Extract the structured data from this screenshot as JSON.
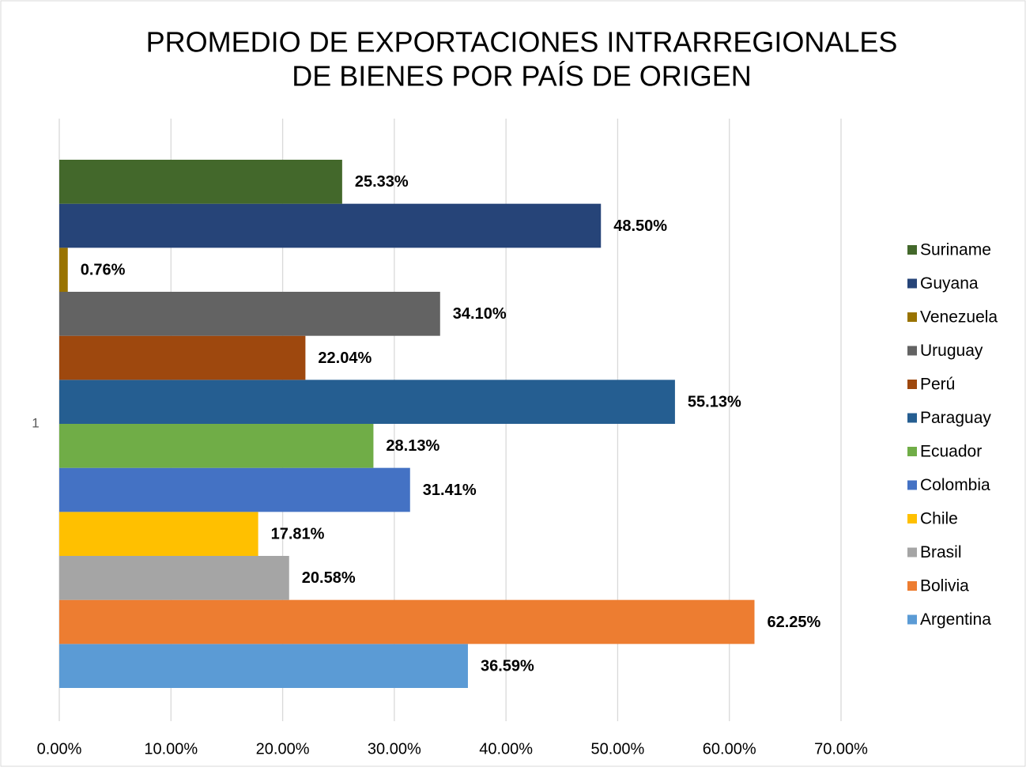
{
  "chart_data": {
    "type": "bar",
    "orientation": "horizontal",
    "title": [
      "PROMEDIO DE EXPORTACIONES INTRARREGIONALES",
      "DE BIENES POR PAÍS DE ORIGEN"
    ],
    "categories": [
      "1"
    ],
    "series": [
      {
        "name": "Argentina",
        "color": "#5b9bd5",
        "values": [
          36.59
        ],
        "value_labels": [
          "36.59%"
        ]
      },
      {
        "name": "Bolivia",
        "color": "#ed7d31",
        "values": [
          62.25
        ],
        "value_labels": [
          "62.25%"
        ]
      },
      {
        "name": "Brasil",
        "color": "#a5a5a5",
        "values": [
          20.58
        ],
        "value_labels": [
          "20.58%"
        ]
      },
      {
        "name": "Chile",
        "color": "#ffc000",
        "values": [
          17.81
        ],
        "value_labels": [
          "17.81%"
        ]
      },
      {
        "name": "Colombia",
        "color": "#4472c4",
        "values": [
          31.41
        ],
        "value_labels": [
          "31.41%"
        ]
      },
      {
        "name": "Ecuador",
        "color": "#70ad47",
        "values": [
          28.13
        ],
        "value_labels": [
          "28.13%"
        ]
      },
      {
        "name": "Paraguay",
        "color": "#255e91",
        "values": [
          55.13
        ],
        "value_labels": [
          "55.13%"
        ]
      },
      {
        "name": "Perú",
        "color": "#9e480e",
        "values": [
          22.04
        ],
        "value_labels": [
          "22.04%"
        ]
      },
      {
        "name": "Uruguay",
        "color": "#636363",
        "values": [
          34.1
        ],
        "value_labels": [
          "34.10%"
        ]
      },
      {
        "name": "Venezuela",
        "color": "#997300",
        "values": [
          0.76
        ],
        "value_labels": [
          "0.76%"
        ]
      },
      {
        "name": "Guyana",
        "color": "#264478",
        "values": [
          48.5
        ],
        "value_labels": [
          "48.50%"
        ]
      },
      {
        "name": "Suriname",
        "color": "#43682b",
        "values": [
          25.33
        ],
        "value_labels": [
          "25.33%"
        ]
      }
    ],
    "xlim": [
      0,
      70
    ],
    "xticks": [
      {
        "value": 0,
        "label": "0.00%"
      },
      {
        "value": 10,
        "label": "10.00%"
      },
      {
        "value": 20,
        "label": "20.00%"
      },
      {
        "value": 30,
        "label": "30.00%"
      },
      {
        "value": 40,
        "label": "40.00%"
      },
      {
        "value": 50,
        "label": "50.00%"
      },
      {
        "value": 60,
        "label": "60.00%"
      },
      {
        "value": 70,
        "label": "70.00%"
      }
    ],
    "grid": true,
    "legend": "right"
  }
}
